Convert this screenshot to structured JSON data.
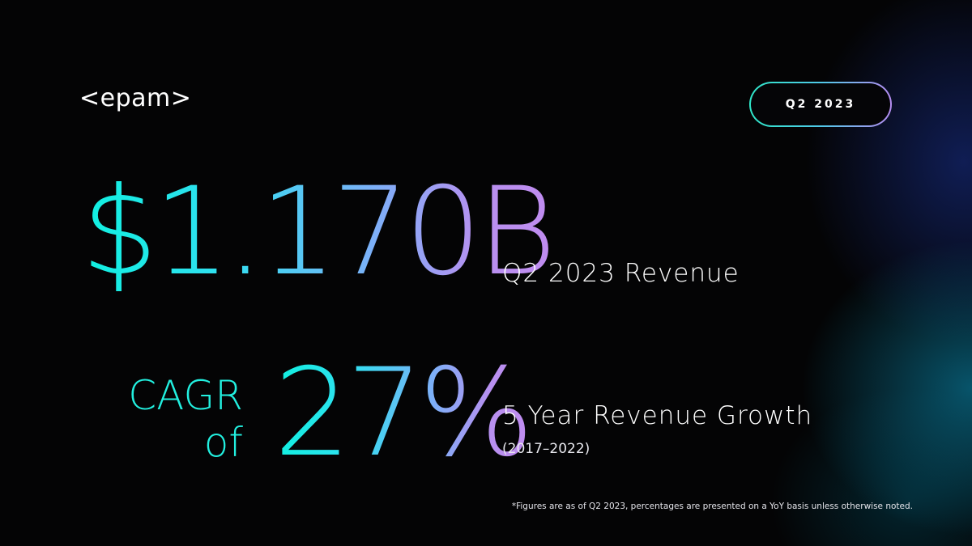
{
  "brand": {
    "logo_text": "<epam>"
  },
  "period_badge": {
    "label": "Q2 2023"
  },
  "revenue": {
    "value": "$1.170B",
    "label": "Q2 2023 Revenue"
  },
  "growth": {
    "prefix_line1": "CAGR",
    "prefix_line2": "of",
    "value": "27%",
    "label": "5 Year Revenue Growth",
    "period": "(2017–2022)"
  },
  "footnote": "*Figures are as of Q2 2023, percentages are presented on a YoY basis unless otherwise noted.",
  "colors": {
    "background": "#040405",
    "accent_cyan": "#10f0e0",
    "accent_blue": "#7cb0f8",
    "accent_purple": "#c08cf0",
    "text": "#ffffff"
  }
}
